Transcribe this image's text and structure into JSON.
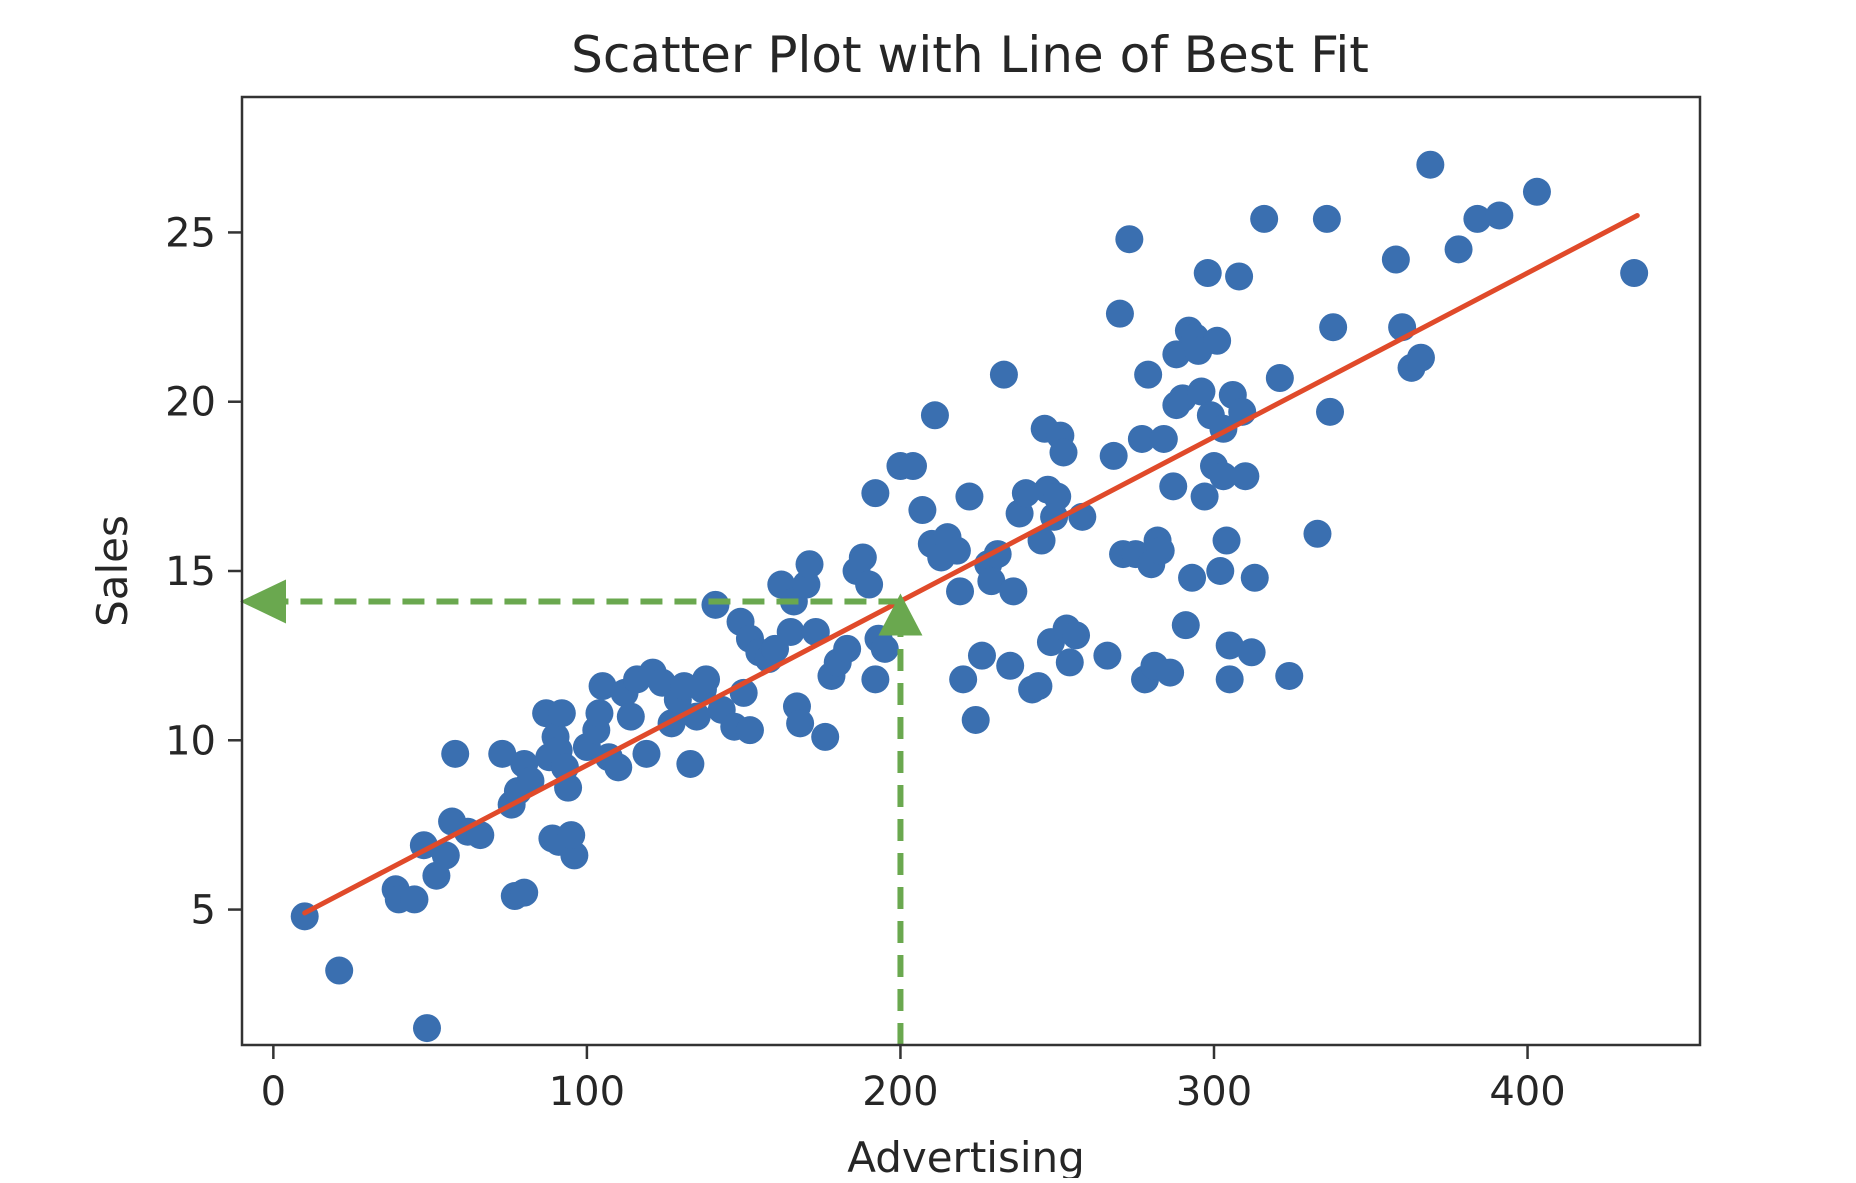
{
  "chart_data": {
    "type": "scatter",
    "title": "Scatter Plot with Line of Best Fit",
    "xlabel": "Advertising",
    "ylabel": "Sales",
    "xlim": [
      -10,
      455
    ],
    "ylim": [
      1.0,
      29.0
    ],
    "xticks": [
      0,
      100,
      200,
      300,
      400
    ],
    "yticks": [
      5,
      10,
      15,
      20,
      25
    ],
    "xtick_labels": [
      "0",
      "100",
      "200",
      "300",
      "400"
    ],
    "ytick_labels": [
      "5",
      "10",
      "15",
      "20",
      "25"
    ],
    "grid": false,
    "colors": {
      "points": "#3a6fb0",
      "fit_line": "#e04a2a",
      "guide": "#6aa84f",
      "axes": "#333333"
    },
    "fit_line": {
      "x": [
        10,
        435
      ],
      "y": [
        4.9,
        25.5
      ]
    },
    "guide_x": 200,
    "guide_y": 14.1,
    "points": [
      [
        10,
        4.8
      ],
      [
        21,
        3.2
      ],
      [
        49,
        1.5
      ],
      [
        39,
        5.6
      ],
      [
        40,
        5.3
      ],
      [
        45,
        5.3
      ],
      [
        48,
        6.9
      ],
      [
        52,
        6.0
      ],
      [
        55,
        6.6
      ],
      [
        57,
        7.6
      ],
      [
        58,
        9.6
      ],
      [
        62,
        7.3
      ],
      [
        66,
        7.2
      ],
      [
        73,
        9.6
      ],
      [
        76,
        8.1
      ],
      [
        78,
        8.5
      ],
      [
        80,
        9.3
      ],
      [
        82,
        8.8
      ],
      [
        77,
        5.4
      ],
      [
        80,
        5.5
      ],
      [
        87,
        10.8
      ],
      [
        88,
        9.5
      ],
      [
        90,
        10.1
      ],
      [
        91,
        9.7
      ],
      [
        92,
        10.8
      ],
      [
        93,
        9.2
      ],
      [
        94,
        8.6
      ],
      [
        89,
        7.1
      ],
      [
        91,
        7.0
      ],
      [
        96,
        6.6
      ],
      [
        95,
        7.2
      ],
      [
        100,
        9.8
      ],
      [
        103,
        10.3
      ],
      [
        104,
        10.8
      ],
      [
        105,
        11.6
      ],
      [
        107,
        9.5
      ],
      [
        110,
        9.2
      ],
      [
        112,
        11.4
      ],
      [
        114,
        10.7
      ],
      [
        116,
        11.8
      ],
      [
        119,
        9.6
      ],
      [
        121,
        12.0
      ],
      [
        124,
        11.7
      ],
      [
        127,
        10.5
      ],
      [
        129,
        11.2
      ],
      [
        131,
        11.6
      ],
      [
        133,
        9.3
      ],
      [
        135,
        10.7
      ],
      [
        137,
        11.5
      ],
      [
        138,
        11.8
      ],
      [
        141,
        14.0
      ],
      [
        143,
        10.9
      ],
      [
        147,
        10.4
      ],
      [
        149,
        13.5
      ],
      [
        150,
        11.4
      ],
      [
        152,
        13.0
      ],
      [
        152,
        10.3
      ],
      [
        155,
        12.6
      ],
      [
        158,
        12.4
      ],
      [
        160,
        12.7
      ],
      [
        162,
        14.6
      ],
      [
        165,
        13.2
      ],
      [
        166,
        14.1
      ],
      [
        167,
        11.0
      ],
      [
        168,
        10.5
      ],
      [
        170,
        14.6
      ],
      [
        171,
        15.2
      ],
      [
        173,
        13.2
      ],
      [
        176,
        10.1
      ],
      [
        178,
        11.9
      ],
      [
        180,
        12.3
      ],
      [
        183,
        12.7
      ],
      [
        186,
        15.0
      ],
      [
        188,
        15.4
      ],
      [
        190,
        14.6
      ],
      [
        192,
        11.8
      ],
      [
        193,
        13.0
      ],
      [
        195,
        12.7
      ],
      [
        192,
        17.3
      ],
      [
        200,
        18.1
      ],
      [
        204,
        18.1
      ],
      [
        207,
        16.8
      ],
      [
        210,
        15.8
      ],
      [
        211,
        19.6
      ],
      [
        213,
        15.4
      ],
      [
        215,
        16.0
      ],
      [
        218,
        15.6
      ],
      [
        219,
        14.4
      ],
      [
        220,
        11.8
      ],
      [
        222,
        17.2
      ],
      [
        224,
        10.6
      ],
      [
        226,
        12.5
      ],
      [
        228,
        15.2
      ],
      [
        229,
        14.7
      ],
      [
        231,
        15.5
      ],
      [
        233,
        20.8
      ],
      [
        235,
        12.2
      ],
      [
        236,
        14.4
      ],
      [
        238,
        16.7
      ],
      [
        240,
        17.3
      ],
      [
        242,
        11.5
      ],
      [
        244,
        11.6
      ],
      [
        245,
        15.9
      ],
      [
        246,
        19.2
      ],
      [
        247,
        17.4
      ],
      [
        248,
        12.9
      ],
      [
        249,
        16.6
      ],
      [
        250,
        17.2
      ],
      [
        251,
        19.0
      ],
      [
        252,
        18.5
      ],
      [
        253,
        13.3
      ],
      [
        254,
        12.3
      ],
      [
        256,
        13.1
      ],
      [
        258,
        16.6
      ],
      [
        266,
        12.5
      ],
      [
        268,
        18.4
      ],
      [
        270,
        22.6
      ],
      [
        271,
        15.5
      ],
      [
        273,
        24.8
      ],
      [
        275,
        15.5
      ],
      [
        277,
        18.9
      ],
      [
        278,
        11.8
      ],
      [
        279,
        20.8
      ],
      [
        280,
        15.2
      ],
      [
        281,
        12.2
      ],
      [
        282,
        15.9
      ],
      [
        283,
        15.6
      ],
      [
        284,
        18.9
      ],
      [
        286,
        12.0
      ],
      [
        287,
        17.5
      ],
      [
        288,
        21.4
      ],
      [
        288,
        19.9
      ],
      [
        290,
        20.1
      ],
      [
        291,
        13.4
      ],
      [
        292,
        22.1
      ],
      [
        293,
        14.8
      ],
      [
        294,
        21.9
      ],
      [
        295,
        21.5
      ],
      [
        296,
        20.3
      ],
      [
        297,
        17.2
      ],
      [
        298,
        23.8
      ],
      [
        299,
        19.6
      ],
      [
        300,
        18.1
      ],
      [
        301,
        21.8
      ],
      [
        302,
        15.0
      ],
      [
        303,
        19.2
      ],
      [
        303,
        17.8
      ],
      [
        304,
        15.9
      ],
      [
        305,
        11.8
      ],
      [
        305,
        12.8
      ],
      [
        306,
        20.2
      ],
      [
        308,
        23.7
      ],
      [
        309,
        19.7
      ],
      [
        310,
        17.8
      ],
      [
        312,
        12.6
      ],
      [
        313,
        14.8
      ],
      [
        316,
        25.4
      ],
      [
        321,
        20.7
      ],
      [
        324,
        11.9
      ],
      [
        333,
        16.1
      ],
      [
        336,
        25.4
      ],
      [
        337,
        19.7
      ],
      [
        338,
        22.2
      ],
      [
        358,
        24.2
      ],
      [
        360,
        22.2
      ],
      [
        363,
        21.0
      ],
      [
        366,
        21.3
      ],
      [
        369,
        27.0
      ],
      [
        378,
        24.5
      ],
      [
        384,
        25.4
      ],
      [
        391,
        25.5
      ],
      [
        403,
        26.2
      ],
      [
        434,
        23.8
      ]
    ]
  }
}
